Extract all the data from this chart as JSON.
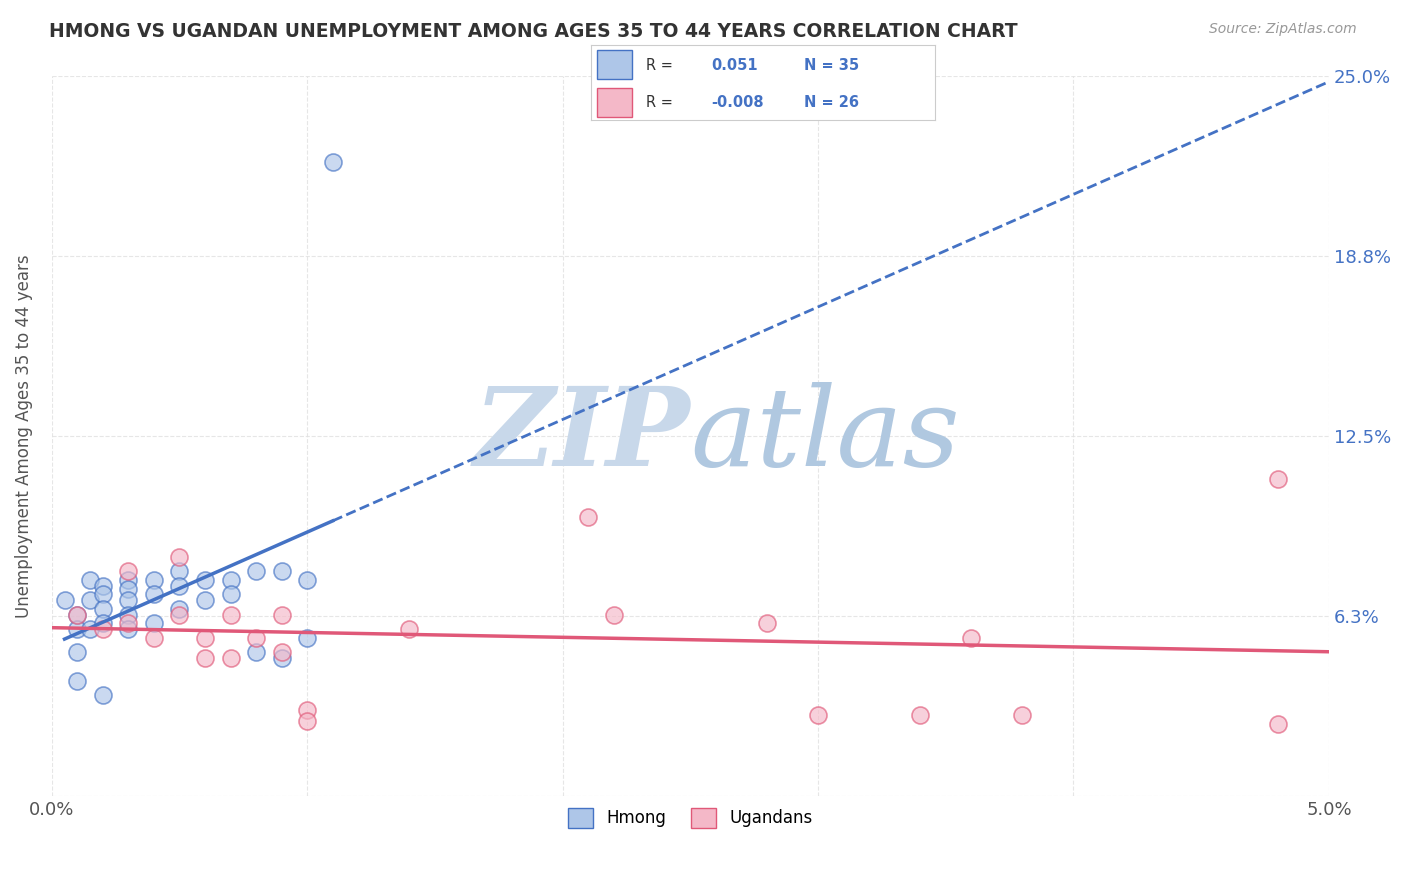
{
  "title": "HMONG VS UGANDAN UNEMPLOYMENT AMONG AGES 35 TO 44 YEARS CORRELATION CHART",
  "source": "Source: ZipAtlas.com",
  "ylabel": "Unemployment Among Ages 35 to 44 years",
  "xlim": [
    0.0,
    0.05
  ],
  "ylim": [
    0.0,
    0.25
  ],
  "xtick_positions": [
    0.0,
    0.01,
    0.02,
    0.03,
    0.04,
    0.05
  ],
  "xticklabels": [
    "0.0%",
    "",
    "",
    "",
    "",
    "5.0%"
  ],
  "ytick_positions": [
    0.0,
    0.0625,
    0.125,
    0.1875,
    0.25
  ],
  "yticklabels": [
    "",
    "6.3%",
    "12.5%",
    "18.8%",
    "25.0%"
  ],
  "hmong_R": "0.051",
  "hmong_N": "35",
  "ugandan_R": "-0.008",
  "ugandan_N": "26",
  "hmong_color": "#aec6e8",
  "ugandan_color": "#f4b8c8",
  "trend_hmong_color": "#4472c4",
  "trend_ugandan_color": "#e05878",
  "grid_color": "#e0e0e0",
  "background_color": "#ffffff",
  "hmong_x": [
    0.0005,
    0.001,
    0.001,
    0.001,
    0.001,
    0.0015,
    0.0015,
    0.0015,
    0.002,
    0.002,
    0.002,
    0.002,
    0.002,
    0.003,
    0.003,
    0.003,
    0.003,
    0.003,
    0.004,
    0.004,
    0.004,
    0.005,
    0.005,
    0.005,
    0.006,
    0.006,
    0.007,
    0.007,
    0.008,
    0.008,
    0.009,
    0.009,
    0.01,
    0.01,
    0.011
  ],
  "hmong_y": [
    0.068,
    0.063,
    0.058,
    0.05,
    0.04,
    0.075,
    0.068,
    0.058,
    0.073,
    0.07,
    0.065,
    0.06,
    0.035,
    0.075,
    0.072,
    0.068,
    0.063,
    0.058,
    0.075,
    0.07,
    0.06,
    0.078,
    0.073,
    0.065,
    0.075,
    0.068,
    0.075,
    0.07,
    0.078,
    0.05,
    0.078,
    0.048,
    0.075,
    0.055,
    0.22
  ],
  "ugandan_x": [
    0.001,
    0.002,
    0.003,
    0.003,
    0.004,
    0.005,
    0.005,
    0.006,
    0.006,
    0.007,
    0.007,
    0.008,
    0.009,
    0.009,
    0.01,
    0.01,
    0.014,
    0.021,
    0.022,
    0.028,
    0.03,
    0.034,
    0.036,
    0.038,
    0.048,
    0.048
  ],
  "ugandan_y": [
    0.063,
    0.058,
    0.078,
    0.06,
    0.055,
    0.083,
    0.063,
    0.055,
    0.048,
    0.063,
    0.048,
    0.055,
    0.063,
    0.05,
    0.03,
    0.026,
    0.058,
    0.097,
    0.063,
    0.06,
    0.028,
    0.028,
    0.055,
    0.028,
    0.025,
    0.11
  ],
  "watermark_zip_color": "#c8d8e8",
  "watermark_atlas_color": "#b8cce4"
}
